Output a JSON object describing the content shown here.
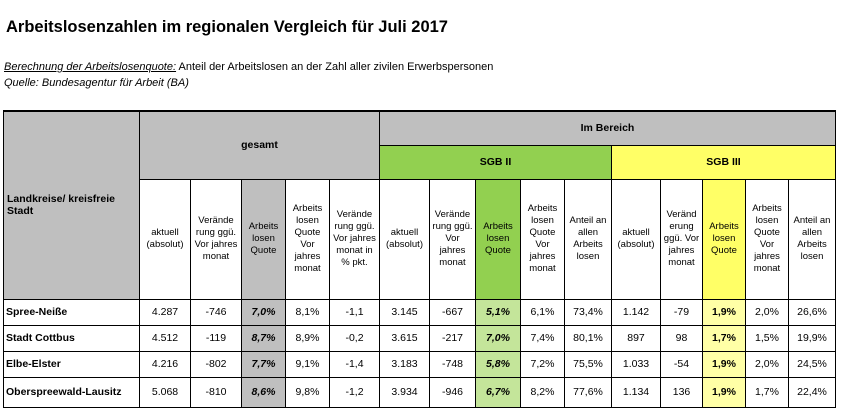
{
  "title": "Arbeitslosenzahlen im regionalen Vergleich für Juli 2017",
  "calc_label": "Berechnung der Arbeitslosenquote:",
  "calc_text": " Anteil der Arbeitslosen an der Zahl aller zivilen Erwerbspersonen",
  "source": "Quelle: Bundesagentur für Arbeit (BA)",
  "table": {
    "row_header": "Landkreise/ kreisfreie Stadt",
    "group_total": "gesamt",
    "group_area": "Im Bereich",
    "group_sgb2": "SGB II",
    "group_sgb3": "SGB III",
    "cols_total": [
      "aktuell (absolut)",
      "Verände rung ggü. Vor jahres monat",
      "Arbeits losen Quote",
      "Arbeits losen Quote Vor jahres monat",
      "Verände rung ggü. Vor jahres monat in % pkt."
    ],
    "cols_sgb2": [
      "aktuell (absolut)",
      "Verände rung ggü. Vor jahres monat",
      "Arbeits losen Quote",
      "Arbeits losen Quote Vor jahres monat",
      "Anteil an allen Arbeits losen"
    ],
    "cols_sgb3": [
      "aktuell (absolut)",
      "Veränd erung ggü. Vor jahres monat",
      "Arbeits losen Quote",
      "Arbeits losen Quote Vor jahres monat",
      "Anteil an allen Arbeits losen"
    ],
    "rows": [
      {
        "name": "Spree-Neiße",
        "cells": [
          "4.287",
          "-746",
          "7,0%",
          "8,1%",
          "-1,1",
          "3.145",
          "-667",
          "5,1%",
          "6,1%",
          "73,4%",
          "1.142",
          "-79",
          "1,9%",
          "2,0%",
          "26,6%"
        ]
      },
      {
        "name": "Stadt Cottbus",
        "cells": [
          "4.512",
          "-119",
          "8,7%",
          "8,9%",
          "-0,2",
          "3.615",
          "-217",
          "7,0%",
          "7,4%",
          "80,1%",
          "897",
          "98",
          "1,7%",
          "1,5%",
          "19,9%"
        ]
      },
      {
        "name": "Elbe-Elster",
        "cells": [
          "4.216",
          "-802",
          "7,7%",
          "9,1%",
          "-1,4",
          "3.183",
          "-748",
          "5,8%",
          "7,2%",
          "75,5%",
          "1.033",
          "-54",
          "1,9%",
          "2,0%",
          "24,5%"
        ]
      },
      {
        "name": "Oberspreewald-Lausitz",
        "cells": [
          "5.068",
          "-810",
          "8,6%",
          "9,8%",
          "-1,2",
          "3.934",
          "-946",
          "6,7%",
          "8,2%",
          "77,6%",
          "1.134",
          "136",
          "1,9%",
          "1,7%",
          "22,4%"
        ]
      }
    ]
  }
}
